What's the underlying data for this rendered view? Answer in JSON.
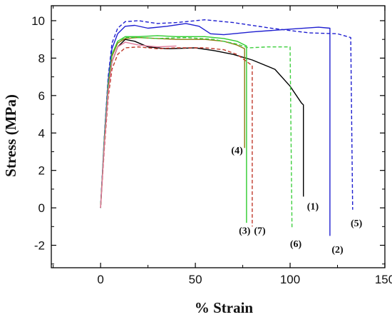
{
  "chart_data": {
    "type": "line",
    "title": "",
    "xlabel": "% Strain",
    "ylabel": "Stress (MPa)",
    "xlim": [
      -26,
      150
    ],
    "ylim": [
      -3.2,
      10.8
    ],
    "xticks": [
      0,
      50,
      100,
      150
    ],
    "yticks": [
      -2,
      0,
      2,
      4,
      6,
      8,
      10
    ],
    "grid": false,
    "legend": "none",
    "series": [
      {
        "label": "(1)",
        "color": "#000000",
        "dash": "solid",
        "label_pos": [
          112,
          0.1
        ],
        "points": [
          [
            0,
            0
          ],
          [
            2,
            3.5
          ],
          [
            4,
            6.4
          ],
          [
            6,
            7.8
          ],
          [
            9,
            8.6
          ],
          [
            13,
            9.0
          ],
          [
            18,
            8.9
          ],
          [
            25,
            8.6
          ],
          [
            35,
            8.5
          ],
          [
            50,
            8.55
          ],
          [
            60,
            8.4
          ],
          [
            70,
            8.2
          ],
          [
            80,
            7.9
          ],
          [
            92,
            7.4
          ],
          [
            100,
            6.5
          ],
          [
            106,
            5.6
          ],
          [
            107,
            5.5
          ],
          [
            107,
            0.6
          ]
        ]
      },
      {
        "label": "(2)",
        "color": "#1f1fd0",
        "dash": "solid",
        "label_pos": [
          125,
          -2.2
        ],
        "points": [
          [
            0,
            0
          ],
          [
            2,
            3.8
          ],
          [
            4,
            6.8
          ],
          [
            6,
            8.5
          ],
          [
            9,
            9.3
          ],
          [
            13,
            9.7
          ],
          [
            18,
            9.75
          ],
          [
            25,
            9.6
          ],
          [
            35,
            9.7
          ],
          [
            45,
            9.85
          ],
          [
            52,
            9.7
          ],
          [
            58,
            9.3
          ],
          [
            65,
            9.25
          ],
          [
            80,
            9.4
          ],
          [
            100,
            9.55
          ],
          [
            115,
            9.65
          ],
          [
            121,
            9.6
          ],
          [
            121,
            -1.5
          ]
        ]
      },
      {
        "label": "(3)",
        "color": "#2ecc2e",
        "dash": "solid",
        "label_pos": [
          76,
          -1.2
        ],
        "points": [
          [
            0,
            0
          ],
          [
            2,
            3.7
          ],
          [
            4,
            6.6
          ],
          [
            6,
            8.2
          ],
          [
            9,
            8.9
          ],
          [
            13,
            9.15
          ],
          [
            20,
            9.15
          ],
          [
            30,
            9.2
          ],
          [
            40,
            9.15
          ],
          [
            55,
            9.15
          ],
          [
            65,
            9.05
          ],
          [
            72,
            8.9
          ],
          [
            77,
            8.65
          ],
          [
            77,
            -0.8
          ]
        ]
      },
      {
        "label": "(4)",
        "color": "#8a7a10",
        "dash": "solid",
        "label_pos": [
          72,
          3.1
        ],
        "points": [
          [
            0,
            0
          ],
          [
            2,
            3.6
          ],
          [
            4,
            6.5
          ],
          [
            6,
            8.1
          ],
          [
            9,
            8.8
          ],
          [
            13,
            9.05
          ],
          [
            20,
            9.1
          ],
          [
            30,
            9.05
          ],
          [
            40,
            9.0
          ],
          [
            55,
            9.0
          ],
          [
            65,
            8.9
          ],
          [
            72,
            8.7
          ],
          [
            76,
            8.5
          ],
          [
            76,
            3.2
          ]
        ]
      },
      {
        "label": "(5)",
        "color": "#1f1fd0",
        "dash": "dashed",
        "label_pos": [
          135,
          -0.8
        ],
        "points": [
          [
            0,
            0
          ],
          [
            2,
            3.9
          ],
          [
            4,
            7.0
          ],
          [
            6,
            8.8
          ],
          [
            9,
            9.6
          ],
          [
            13,
            9.95
          ],
          [
            20,
            10.0
          ],
          [
            30,
            9.85
          ],
          [
            40,
            9.9
          ],
          [
            55,
            10.05
          ],
          [
            70,
            9.9
          ],
          [
            90,
            9.6
          ],
          [
            110,
            9.35
          ],
          [
            125,
            9.3
          ],
          [
            132,
            9.1
          ],
          [
            133,
            -0.1
          ]
        ]
      },
      {
        "label": "(6)",
        "color": "#3ecf3e",
        "dash": "dashed",
        "label_pos": [
          103,
          -1.9
        ],
        "points": [
          [
            0,
            0
          ],
          [
            2,
            3.7
          ],
          [
            4,
            6.6
          ],
          [
            6,
            8.2
          ],
          [
            9,
            8.9
          ],
          [
            13,
            9.1
          ],
          [
            20,
            9.1
          ],
          [
            30,
            9.05
          ],
          [
            45,
            9.1
          ],
          [
            60,
            9.0
          ],
          [
            72,
            8.75
          ],
          [
            78,
            8.55
          ],
          [
            88,
            8.6
          ],
          [
            100,
            8.6
          ],
          [
            101,
            -1.1
          ]
        ]
      },
      {
        "label": "(7)",
        "color": "#c0392b",
        "dash": "dashed",
        "label_pos": [
          84,
          -1.2
        ],
        "points": [
          [
            0,
            0
          ],
          [
            2,
            3.2
          ],
          [
            4,
            5.9
          ],
          [
            6,
            7.4
          ],
          [
            9,
            8.2
          ],
          [
            13,
            8.55
          ],
          [
            20,
            8.6
          ],
          [
            30,
            8.5
          ],
          [
            40,
            8.55
          ],
          [
            55,
            8.55
          ],
          [
            65,
            8.45
          ],
          [
            72,
            8.2
          ],
          [
            80,
            7.6
          ],
          [
            80,
            -1.0
          ]
        ]
      },
      {
        "label": "",
        "color": "#e07a9a",
        "dash": "solid",
        "label_pos": null,
        "points": [
          [
            0,
            0
          ],
          [
            2,
            3.4
          ],
          [
            4,
            6.2
          ],
          [
            6,
            7.8
          ],
          [
            9,
            8.6
          ],
          [
            13,
            8.85
          ],
          [
            20,
            8.7
          ],
          [
            30,
            8.6
          ],
          [
            40,
            8.65
          ]
        ]
      }
    ]
  }
}
